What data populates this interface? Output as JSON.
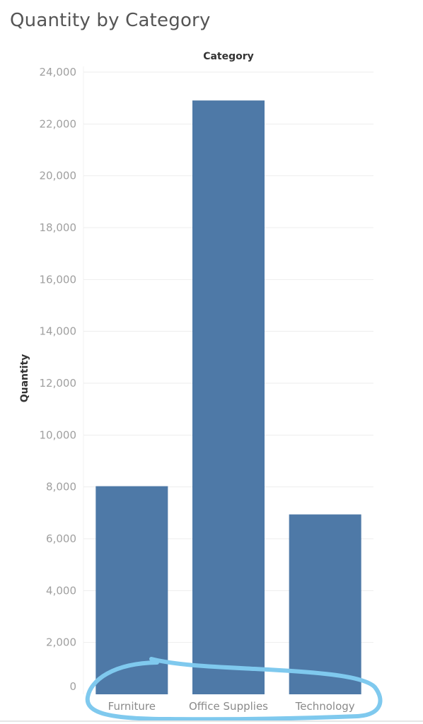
{
  "chart_data": {
    "type": "bar",
    "title": "Quantity by Category",
    "column_header": "Category",
    "ylabel": "Quantity",
    "categories": [
      "Furniture",
      "Office Supplies",
      "Technology"
    ],
    "values": [
      8028,
      22906,
      6939
    ],
    "ylim": [
      0,
      24000
    ],
    "yticks": [
      0,
      2000,
      4000,
      6000,
      8000,
      10000,
      12000,
      14000,
      16000,
      18000,
      20000,
      22000,
      24000
    ],
    "ytick_labels": [
      "0",
      "2,000",
      "4,000",
      "6,000",
      "8,000",
      "10,000",
      "12,000",
      "14,000",
      "16,000",
      "18,000",
      "20,000",
      "22,000",
      "24,000"
    ],
    "grid": true,
    "bar_color": "#4e79a7",
    "highlight_color": "#7fc9ee"
  }
}
